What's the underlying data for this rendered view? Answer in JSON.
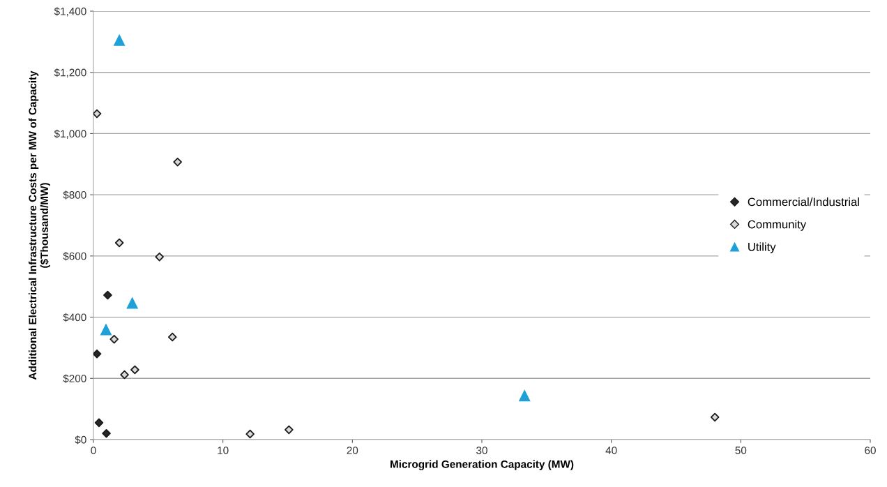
{
  "chart_data": {
    "type": "scatter",
    "xlabel": "Microgrid Generation Capacity (MW)",
    "ylabel": "Additional Electrical Infrastructure Costs per MW of Capacity\n($Thousand/MW)",
    "xlim": [
      0,
      60
    ],
    "xticks": [
      0,
      10,
      20,
      30,
      40,
      50,
      60
    ],
    "ylim": [
      0,
      1400
    ],
    "yticks": [
      {
        "value": 0,
        "label": "$0"
      },
      {
        "value": 200,
        "label": "$200"
      },
      {
        "value": 400,
        "label": "$400"
      },
      {
        "value": 600,
        "label": "$600"
      },
      {
        "value": 800,
        "label": "$800"
      },
      {
        "value": 1000,
        "label": "$1,000"
      },
      {
        "value": 1200,
        "label": "$1,200"
      },
      {
        "value": 1400,
        "label": "$1,400"
      }
    ],
    "grid": "y",
    "legend": "right",
    "series": [
      {
        "name": "Commercial/Industrial",
        "color": "#262626",
        "marker": "diamond",
        "x": [
          0.27,
          0.43,
          1.0,
          1.1
        ],
        "values": [
          280,
          55,
          20,
          472
        ]
      },
      {
        "name": "Community",
        "color": "#d9d9d9",
        "marker": "diamond",
        "x": [
          0.27,
          6.5,
          2.0,
          5.1,
          1.6,
          6.1,
          2.4,
          3.2,
          12.1,
          15.1,
          48.0
        ],
        "values": [
          1065,
          907,
          643,
          597,
          328,
          335,
          212,
          228,
          18,
          32,
          73
        ]
      },
      {
        "name": "Utility",
        "color": "#1fa0d8",
        "marker": "triangle",
        "x": [
          2.0,
          3.0,
          0.97,
          33.3
        ],
        "values": [
          1306,
          447,
          360,
          144
        ]
      }
    ]
  }
}
